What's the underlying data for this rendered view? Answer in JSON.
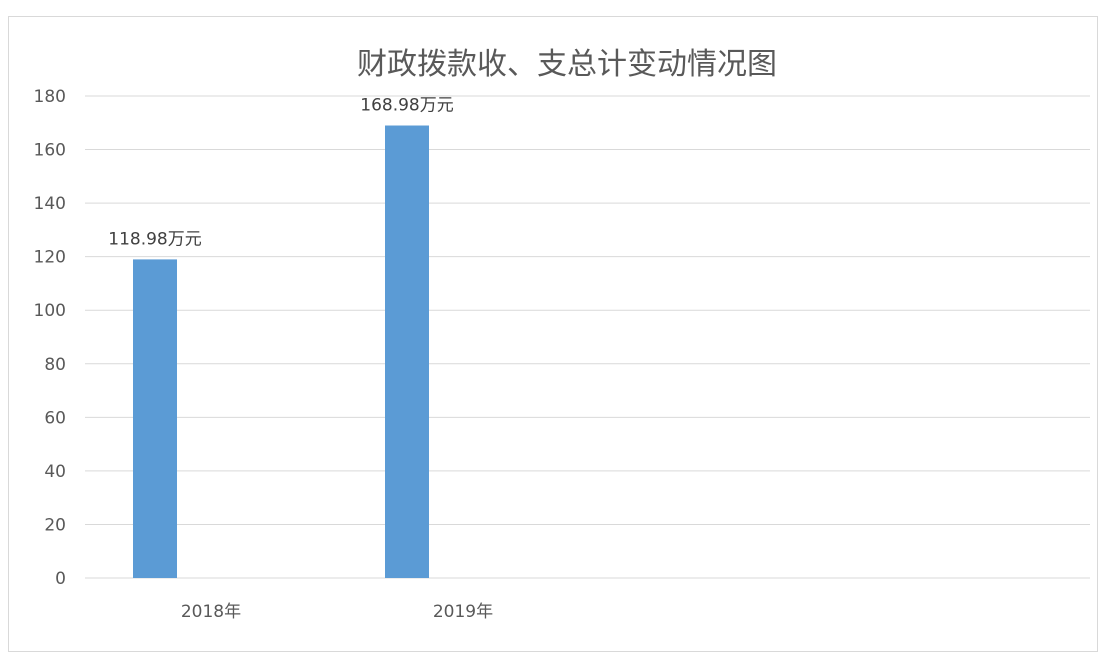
{
  "chart_data": {
    "type": "bar",
    "title": "财政拨款收、支总计变动情况图",
    "categories": [
      "2018年",
      "2019年"
    ],
    "values": [
      118.98,
      168.98
    ],
    "data_labels": [
      "118.98万元",
      "168.98万元"
    ],
    "ylim": [
      0,
      180
    ],
    "yticks": [
      "0",
      "20",
      "40",
      "60",
      "80",
      "100",
      "120",
      "140",
      "160",
      "180"
    ],
    "grid": true,
    "legend": "none",
    "bar_color": "#5b9bd5",
    "grid_color": "#d9d9d9",
    "text_color": "#595959"
  }
}
